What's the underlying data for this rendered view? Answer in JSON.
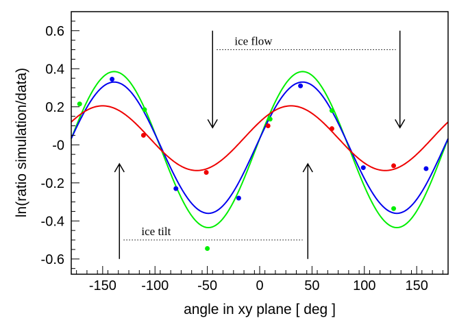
{
  "chart_data": {
    "type": "scatter",
    "xlabel": "angle in xy plane [ deg ]",
    "ylabel": "ln(ratio simulation/data)",
    "xlim": [
      -180,
      180
    ],
    "ylim": [
      -0.68,
      0.7
    ],
    "xticks": [
      -150,
      -100,
      -50,
      0,
      50,
      100,
      150
    ],
    "xtick_labels": [
      "-150",
      "-100",
      "-50",
      "0",
      "50",
      "100",
      "150"
    ],
    "yticks": [
      -0.6,
      -0.4,
      -0.2,
      0,
      0.2,
      0.4,
      0.6
    ],
    "ytick_labels": [
      "-0.6",
      "-0.4",
      "-0.2",
      "-0",
      "0.2",
      "0.4",
      "0.6"
    ],
    "grid": false,
    "legend": "none",
    "series": [
      {
        "color": "#00ee00",
        "points": [
          {
            "x": -172,
            "y": 0.215
          },
          {
            "x": -110,
            "y": 0.185
          },
          {
            "x": -50,
            "y": -0.545
          },
          {
            "x": 10,
            "y": 0.135
          },
          {
            "x": 69,
            "y": 0.18
          },
          {
            "x": 128,
            "y": -0.335
          }
        ],
        "curve": {
          "offset": -0.025,
          "amplitude": 0.41,
          "period_deg": 180,
          "peak_x": -139
        }
      },
      {
        "color": "#0000ee",
        "points": [
          {
            "x": -141,
            "y": 0.345
          },
          {
            "x": -80,
            "y": -0.23
          },
          {
            "x": -20,
            "y": -0.28
          },
          {
            "x": 39,
            "y": 0.31
          },
          {
            "x": 99,
            "y": -0.12
          },
          {
            "x": 159,
            "y": -0.125
          }
        ],
        "curve": {
          "offset": -0.015,
          "amplitude": 0.345,
          "period_deg": 180,
          "peak_x": -139
        }
      },
      {
        "color": "#ee0000",
        "points": [
          {
            "x": -111,
            "y": 0.05
          },
          {
            "x": -51,
            "y": -0.145
          },
          {
            "x": 8,
            "y": 0.1
          },
          {
            "x": 69,
            "y": 0.085
          },
          {
            "x": 128,
            "y": -0.11
          }
        ],
        "curve": {
          "offset": 0.035,
          "amplitude": 0.17,
          "period_deg": 180,
          "peak_x": -150
        }
      }
    ],
    "annotations": [
      {
        "text": "ice flow",
        "arrows": [
          {
            "x": -45,
            "from_y": 0.6,
            "to_y": 0.09
          },
          {
            "x": 134,
            "from_y": 0.6,
            "to_y": 0.09
          }
        ],
        "dotted_line": {
          "x_from": -41,
          "x_to": 130,
          "y": 0.5
        }
      },
      {
        "text": "ice tilt",
        "arrows": [
          {
            "x": -134,
            "from_y": -0.6,
            "to_y": -0.1
          },
          {
            "x": 46,
            "from_y": -0.6,
            "to_y": -0.1
          }
        ],
        "dotted_line": {
          "x_from": -130,
          "x_to": 41,
          "y": -0.5
        }
      }
    ]
  }
}
